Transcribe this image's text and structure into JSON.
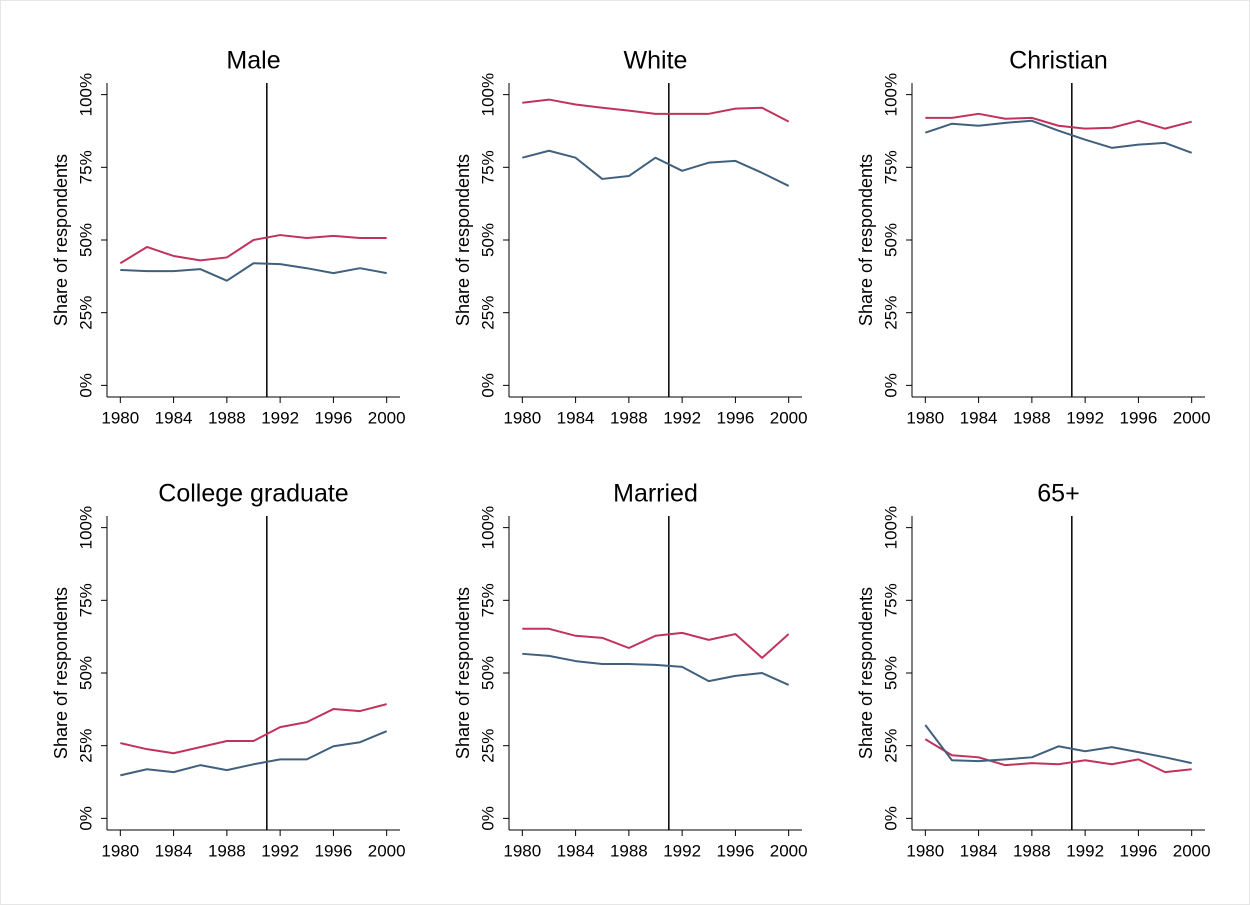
{
  "chart_data": [
    {
      "type": "line",
      "title": "Male",
      "y_label": "Share of respondents",
      "x": [
        1980,
        1982,
        1984,
        1986,
        1988,
        1990,
        1992,
        1994,
        1996,
        1998,
        2000
      ],
      "xlim": [
        1979,
        2001
      ],
      "xticks": [
        1980,
        1984,
        1988,
        1992,
        1996,
        2000
      ],
      "ylim": [
        -4,
        104
      ],
      "yticks": [
        {
          "value": 0,
          "label": "0%"
        },
        {
          "value": 25,
          "label": "25%"
        },
        {
          "value": 50,
          "label": "50%"
        },
        {
          "value": 75,
          "label": "75%"
        },
        {
          "value": 100,
          "label": "100%"
        }
      ],
      "vline": 1991,
      "series": [
        {
          "color": "#c1335c",
          "values": [
            42,
            47.6,
            44.5,
            43,
            44,
            50,
            51.7,
            50.7,
            51.4,
            50.7,
            50.7
          ]
        },
        {
          "color": "#41607e",
          "values": [
            39.7,
            39.3,
            39.3,
            40,
            36,
            42,
            41.7,
            40.3,
            38.6,
            40.3,
            38.6
          ]
        }
      ]
    },
    {
      "type": "line",
      "title": "White",
      "y_label": "Share of respondents",
      "x": [
        1980,
        1982,
        1984,
        1986,
        1988,
        1990,
        1992,
        1994,
        1996,
        1998,
        2000
      ],
      "xlim": [
        1979,
        2001
      ],
      "xticks": [
        1980,
        1984,
        1988,
        1992,
        1996,
        2000
      ],
      "ylim": [
        -4,
        104
      ],
      "yticks": [
        {
          "value": 0,
          "label": "0%"
        },
        {
          "value": 25,
          "label": "25%"
        },
        {
          "value": 50,
          "label": "50%"
        },
        {
          "value": 75,
          "label": "75%"
        },
        {
          "value": 100,
          "label": "100%"
        }
      ],
      "vline": 1991,
      "series": [
        {
          "color": "#c1335c",
          "values": [
            97.2,
            98.3,
            96.6,
            95.5,
            94.5,
            93.4,
            93.4,
            93.4,
            95.2,
            95.5,
            90.7
          ]
        },
        {
          "color": "#41607e",
          "values": [
            78.3,
            80.7,
            78.3,
            71,
            72,
            78.3,
            73.8,
            76.6,
            77.2,
            73.1,
            68.6
          ]
        }
      ]
    },
    {
      "type": "line",
      "title": "Christian",
      "y_label": "Share of respondents",
      "x": [
        1980,
        1982,
        1984,
        1986,
        1988,
        1990,
        1992,
        1994,
        1996,
        1998,
        2000
      ],
      "xlim": [
        1979,
        2001
      ],
      "xticks": [
        1980,
        1984,
        1988,
        1992,
        1996,
        2000
      ],
      "ylim": [
        -4,
        104
      ],
      "yticks": [
        {
          "value": 0,
          "label": "0%"
        },
        {
          "value": 25,
          "label": "25%"
        },
        {
          "value": 50,
          "label": "50%"
        },
        {
          "value": 75,
          "label": "75%"
        },
        {
          "value": 100,
          "label": "100%"
        }
      ],
      "vline": 1991,
      "series": [
        {
          "color": "#c1335c",
          "values": [
            92,
            92,
            93.4,
            91.7,
            92,
            89.3,
            88.3,
            88.6,
            91,
            88.3,
            90.7
          ]
        },
        {
          "color": "#41607e",
          "values": [
            86.9,
            90,
            89.3,
            90.3,
            91,
            87.6,
            84.5,
            81.7,
            82.8,
            83.4,
            80
          ]
        }
      ]
    },
    {
      "type": "line",
      "title": "College graduate",
      "y_label": "Share of respondents",
      "x": [
        1980,
        1982,
        1984,
        1986,
        1988,
        1990,
        1992,
        1994,
        1996,
        1998,
        2000
      ],
      "xlim": [
        1979,
        2001
      ],
      "xticks": [
        1980,
        1984,
        1988,
        1992,
        1996,
        2000
      ],
      "ylim": [
        -4,
        104
      ],
      "yticks": [
        {
          "value": 0,
          "label": "0%"
        },
        {
          "value": 25,
          "label": "25%"
        },
        {
          "value": 50,
          "label": "50%"
        },
        {
          "value": 75,
          "label": "75%"
        },
        {
          "value": 100,
          "label": "100%"
        }
      ],
      "vline": 1991,
      "series": [
        {
          "color": "#c1335c",
          "values": [
            25.9,
            23.8,
            22.4,
            24.5,
            26.6,
            26.6,
            31.4,
            33.1,
            37.6,
            36.9,
            39.3
          ]
        },
        {
          "color": "#41607e",
          "values": [
            14.8,
            16.9,
            15.9,
            18.3,
            16.6,
            18.6,
            20.3,
            20.3,
            24.8,
            26.2,
            30
          ]
        }
      ]
    },
    {
      "type": "line",
      "title": "Married",
      "y_label": "Share of respondents",
      "x": [
        1980,
        1982,
        1984,
        1986,
        1988,
        1990,
        1992,
        1994,
        1996,
        1998,
        2000
      ],
      "xlim": [
        1979,
        2001
      ],
      "xticks": [
        1980,
        1984,
        1988,
        1992,
        1996,
        2000
      ],
      "ylim": [
        -4,
        104
      ],
      "yticks": [
        {
          "value": 0,
          "label": "0%"
        },
        {
          "value": 25,
          "label": "25%"
        },
        {
          "value": 50,
          "label": "50%"
        },
        {
          "value": 75,
          "label": "75%"
        },
        {
          "value": 100,
          "label": "100%"
        }
      ],
      "vline": 1991,
      "series": [
        {
          "color": "#c1335c",
          "values": [
            65.2,
            65.2,
            62.8,
            62.1,
            58.6,
            62.8,
            63.8,
            61.4,
            63.4,
            55.2,
            63.4
          ]
        },
        {
          "color": "#41607e",
          "values": [
            56.6,
            55.9,
            54.1,
            53.1,
            53.1,
            52.8,
            52.1,
            47.2,
            49,
            50,
            45.9
          ]
        }
      ]
    },
    {
      "type": "line",
      "title": "65+",
      "y_label": "Share of respondents",
      "x": [
        1980,
        1982,
        1984,
        1986,
        1988,
        1990,
        1992,
        1994,
        1996,
        1998,
        2000
      ],
      "xlim": [
        1979,
        2001
      ],
      "xticks": [
        1980,
        1984,
        1988,
        1992,
        1996,
        2000
      ],
      "ylim": [
        -4,
        104
      ],
      "yticks": [
        {
          "value": 0,
          "label": "0%"
        },
        {
          "value": 25,
          "label": "25%"
        },
        {
          "value": 50,
          "label": "50%"
        },
        {
          "value": 75,
          "label": "75%"
        },
        {
          "value": 100,
          "label": "100%"
        }
      ],
      "vline": 1991,
      "series": [
        {
          "color": "#c1335c",
          "values": [
            27.2,
            21.7,
            21,
            18.3,
            19,
            18.6,
            20,
            18.6,
            20.3,
            15.9,
            16.9
          ]
        },
        {
          "color": "#41607e",
          "values": [
            32.1,
            20,
            19.7,
            20.3,
            21,
            24.8,
            23.1,
            24.5,
            22.8,
            21,
            19
          ]
        }
      ]
    }
  ]
}
